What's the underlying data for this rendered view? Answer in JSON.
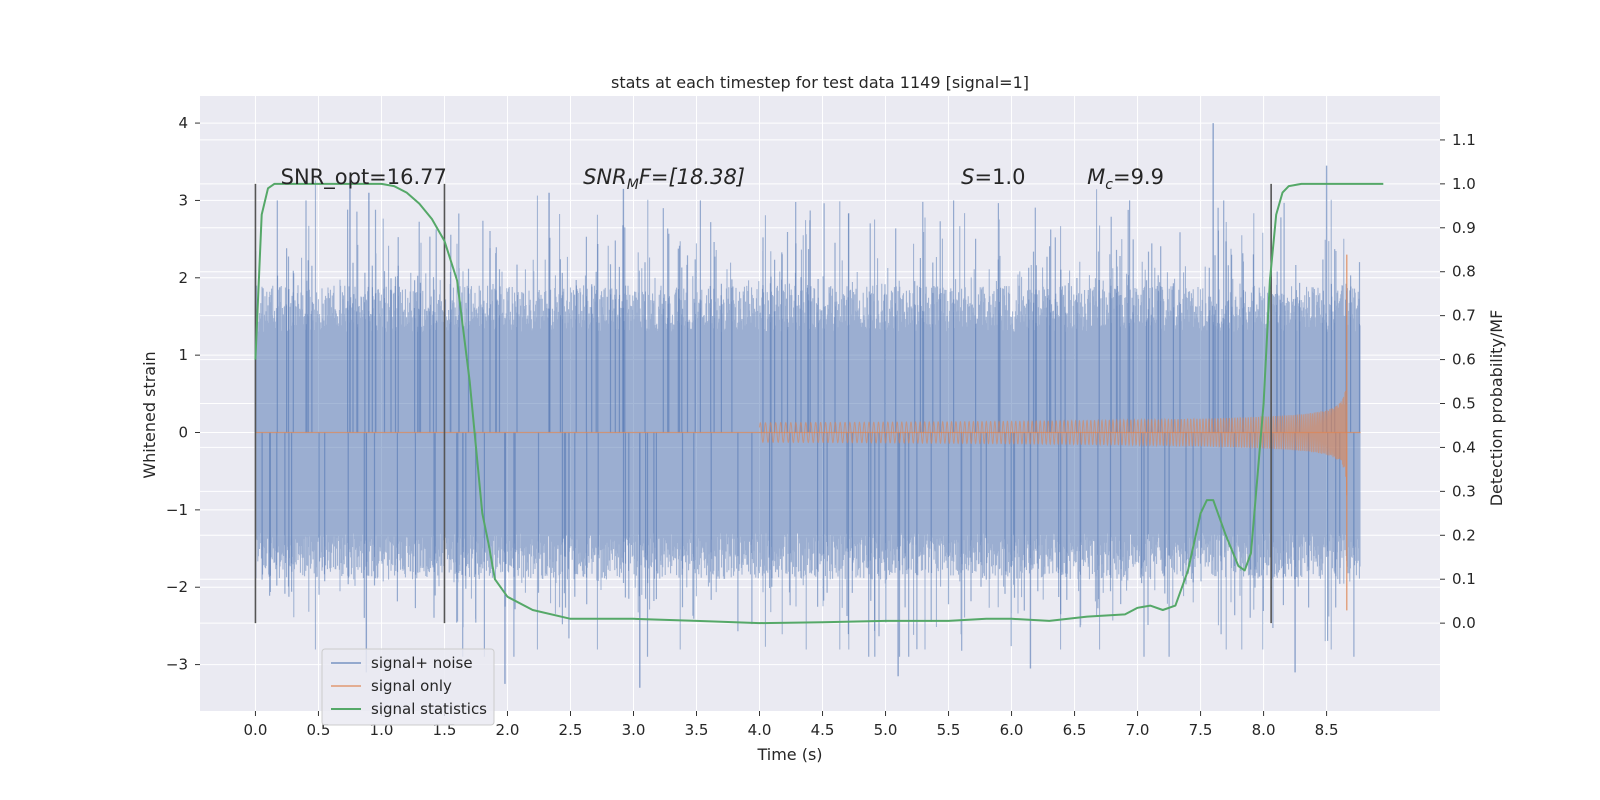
{
  "chart_data": {
    "type": "line",
    "title": "stats at each timestep for test data 1149 [signal=1]",
    "xlabel": "Time (s)",
    "ylabel_left": "Whitened strain",
    "ylabel_right": "Detection probability/MF",
    "xlim": [
      -0.44,
      9.4
    ],
    "ylim_left": [
      -3.6,
      4.35
    ],
    "ylim_right": [
      -0.2,
      1.2
    ],
    "x_ticks": [
      "0.0",
      "0.5",
      "1.0",
      "1.5",
      "2.0",
      "2.5",
      "3.0",
      "3.5",
      "4.0",
      "4.5",
      "5.0",
      "5.5",
      "6.0",
      "6.5",
      "7.0",
      "7.5",
      "8.0",
      "8.5"
    ],
    "y_ticks_left": [
      "−3",
      "−2",
      "−1",
      "0",
      "1",
      "2",
      "3",
      "4"
    ],
    "y_ticks_right": [
      "0.0",
      "0.1",
      "0.2",
      "0.3",
      "0.4",
      "0.5",
      "0.6",
      "0.7",
      "0.8",
      "0.9",
      "1.0",
      "1.1"
    ],
    "grid": true,
    "legend_position": "lower-left",
    "colors": {
      "background": "#eaeaf2",
      "grid": "#ffffff",
      "signal_noise": "#4c72b0",
      "signal_only": "#dd8452",
      "signal_statistics": "#55a868",
      "window_markers": "#555555"
    },
    "annotations": [
      {
        "prefix": "SNR_opt=16.77",
        "sub": "",
        "suffix": "",
        "x": 0.2,
        "y": 1.0
      },
      {
        "prefix": "SNR",
        "sub": "M",
        "suffix": "F=[18.38]",
        "x": 2.6,
        "y": 1.0
      },
      {
        "prefix": "S",
        "sub": "",
        "suffix": "=1.0",
        "x": 5.6,
        "y": 1.0
      },
      {
        "prefix": "M",
        "sub": "c",
        "suffix": "=9.9",
        "x": 6.6,
        "y": 1.0
      }
    ],
    "window_markers_x": [
      0.0,
      1.5,
      8.06
    ],
    "noise_envelope": {
      "x_range": [
        0.0,
        8.77
      ],
      "typical_abs_amplitude": 1.6,
      "max": 4.0,
      "min": -3.3
    },
    "series": [
      {
        "name": "signal+ noise",
        "axis": "left",
        "style": "noise",
        "spikes": [
          {
            "x": 0.0,
            "y": 2.1
          },
          {
            "x": 0.75,
            "y": 3.3
          },
          {
            "x": 0.9,
            "y": 3.1
          },
          {
            "x": 2.33,
            "y": 3.1
          },
          {
            "x": 2.92,
            "y": 3.15
          },
          {
            "x": 7.6,
            "y": 4.0
          },
          {
            "x": 8.5,
            "y": 3.45
          },
          {
            "x": 0.88,
            "y": -3.1
          },
          {
            "x": 1.98,
            "y": -3.25
          },
          {
            "x": 3.05,
            "y": -3.3
          },
          {
            "x": 5.1,
            "y": -3.15
          },
          {
            "x": 6.15,
            "y": -3.05
          },
          {
            "x": 8.25,
            "y": -3.1
          }
        ]
      },
      {
        "name": "signal only",
        "axis": "left",
        "style": "chirp",
        "x_start": 4.0,
        "x_merger": 8.66,
        "peak_amplitude": 2.3
      },
      {
        "name": "signal statistics",
        "axis": "right",
        "style": "line",
        "x": [
          0.0,
          0.05,
          0.1,
          0.15,
          0.2,
          0.3,
          0.5,
          0.8,
          1.0,
          1.1,
          1.2,
          1.3,
          1.4,
          1.5,
          1.6,
          1.7,
          1.8,
          1.85,
          1.9,
          2.0,
          2.2,
          2.5,
          3.0,
          3.5,
          4.0,
          4.5,
          5.0,
          5.5,
          5.8,
          6.0,
          6.3,
          6.6,
          6.9,
          7.0,
          7.1,
          7.2,
          7.3,
          7.4,
          7.5,
          7.55,
          7.6,
          7.65,
          7.7,
          7.8,
          7.85,
          7.9,
          8.0,
          8.05,
          8.1,
          8.15,
          8.2,
          8.3,
          8.5,
          8.7,
          8.95
        ],
        "values": [
          0.6,
          0.93,
          0.99,
          1.0,
          1.0,
          1.0,
          1.0,
          1.0,
          1.0,
          0.995,
          0.98,
          0.955,
          0.92,
          0.87,
          0.78,
          0.55,
          0.25,
          0.18,
          0.1,
          0.06,
          0.03,
          0.01,
          0.01,
          0.005,
          0.0,
          0.002,
          0.005,
          0.005,
          0.01,
          0.01,
          0.005,
          0.015,
          0.02,
          0.035,
          0.04,
          0.03,
          0.04,
          0.12,
          0.25,
          0.28,
          0.28,
          0.24,
          0.2,
          0.13,
          0.12,
          0.16,
          0.5,
          0.78,
          0.93,
          0.98,
          0.995,
          1.0,
          1.0,
          1.0,
          1.0
        ]
      }
    ]
  }
}
